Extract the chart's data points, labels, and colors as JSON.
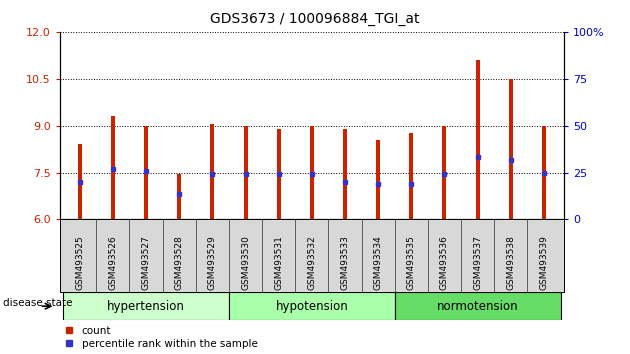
{
  "title": "GDS3673 / 100096884_TGI_at",
  "samples": [
    "GSM493525",
    "GSM493526",
    "GSM493527",
    "GSM493528",
    "GSM493529",
    "GSM493530",
    "GSM493531",
    "GSM493532",
    "GSM493533",
    "GSM493534",
    "GSM493535",
    "GSM493536",
    "GSM493537",
    "GSM493538",
    "GSM493539"
  ],
  "bar_heights": [
    8.4,
    9.3,
    9.0,
    7.45,
    9.05,
    9.0,
    8.9,
    9.0,
    8.9,
    8.55,
    8.75,
    9.0,
    11.1,
    10.5,
    9.0
  ],
  "blue_positions": [
    7.2,
    7.6,
    7.55,
    6.8,
    7.45,
    7.45,
    7.45,
    7.45,
    7.2,
    7.15,
    7.15,
    7.45,
    8.0,
    7.9,
    7.5
  ],
  "ylim_left": [
    6,
    12
  ],
  "yticks_left": [
    6,
    7.5,
    9,
    10.5,
    12
  ],
  "yticks_right": [
    0,
    25,
    50,
    75,
    100
  ],
  "groups": [
    {
      "label": "hypertension",
      "start": 0,
      "end": 4,
      "color": "#ccffcc"
    },
    {
      "label": "hypotension",
      "start": 5,
      "end": 9,
      "color": "#aaffaa"
    },
    {
      "label": "normotension",
      "start": 10,
      "end": 14,
      "color": "#66dd66"
    }
  ],
  "bar_color": "#cc2200",
  "blue_color": "#3333cc",
  "bar_width": 0.12,
  "background_color": "#ffffff",
  "xlabel_color": "#cc2200",
  "ylabel_right_color": "#0000cc",
  "legend_items": [
    "count",
    "percentile rank within the sample"
  ]
}
